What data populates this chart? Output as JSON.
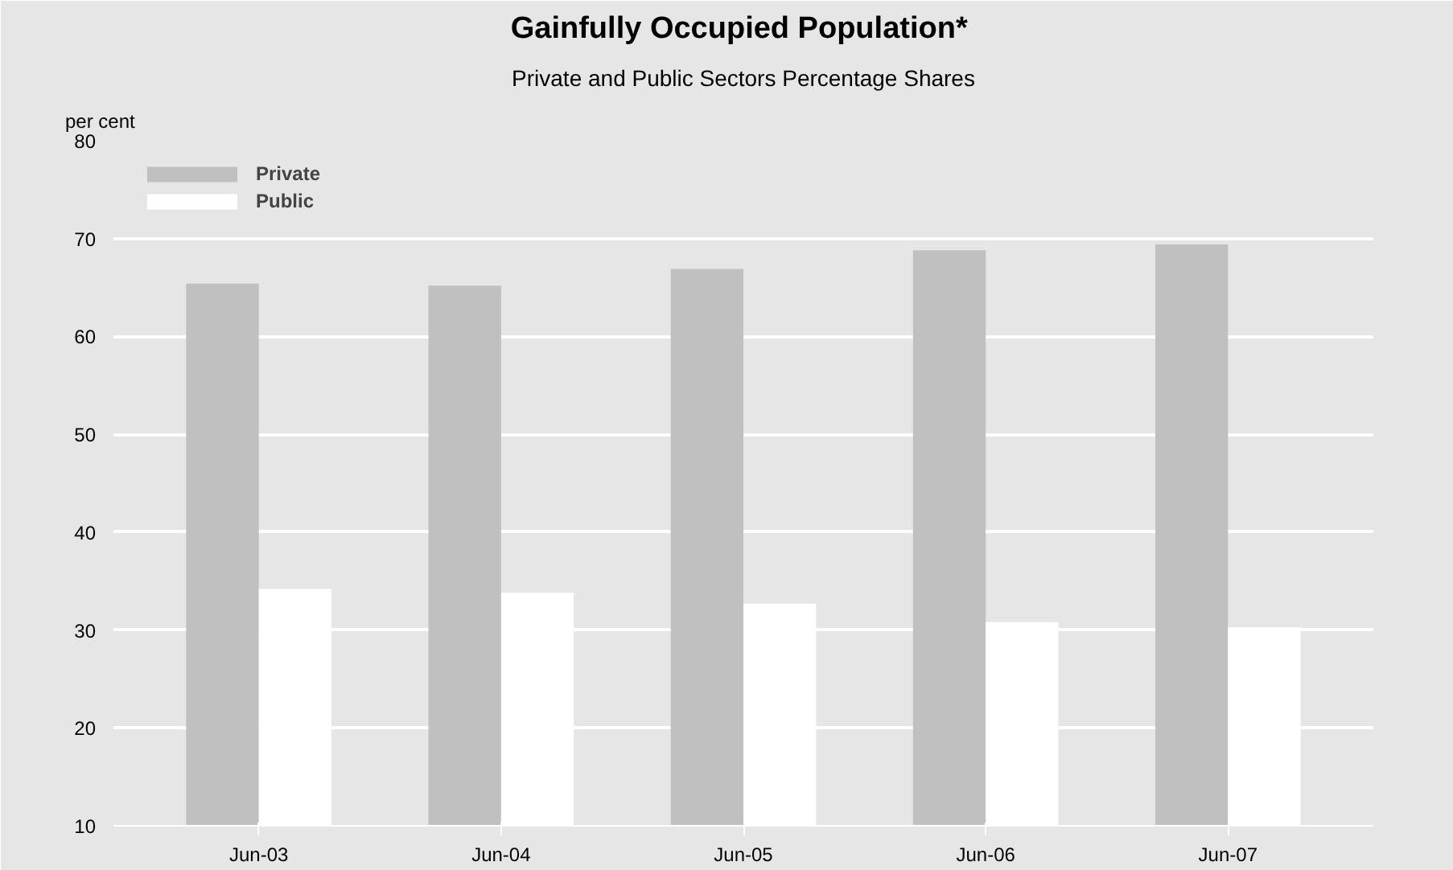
{
  "chart_data": {
    "type": "bar",
    "title": "Gainfully Occupied  Population*",
    "subtitle": "Private and Public Sectors Percentage Shares",
    "ylabel": "per cent",
    "categories": [
      "Jun-03",
      "Jun-04",
      "Jun-05",
      "Jun-06",
      "Jun-07"
    ],
    "series": [
      {
        "name": "Private",
        "color": "#c0c0c0",
        "values": [
          65.4,
          65.2,
          66.9,
          68.8,
          69.4
        ]
      },
      {
        "name": "Public",
        "color": "#ffffff",
        "values": [
          34.2,
          33.8,
          32.7,
          30.8,
          30.3
        ]
      }
    ],
    "ylim": [
      10,
      80
    ],
    "yticks": [
      10,
      20,
      30,
      40,
      50,
      60,
      70,
      80
    ],
    "grid": "y",
    "legend": "top left"
  }
}
